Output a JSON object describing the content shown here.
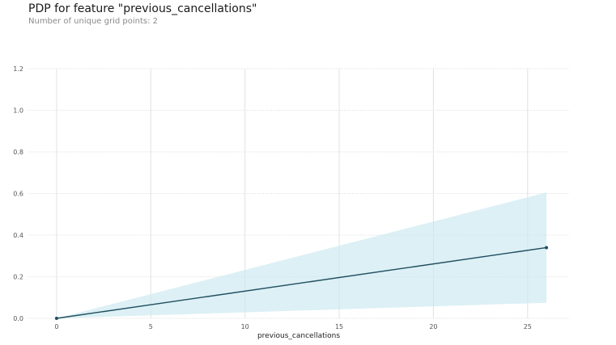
{
  "chart_data": {
    "type": "line",
    "title": "PDP for feature \"previous_cancellations\"",
    "subtitle": "Number of unique grid points: 2",
    "xlabel": "previous_cancellations",
    "ylabel": "",
    "xlim": [
      -1.5,
      27.2
    ],
    "ylim": [
      0,
      1.2
    ],
    "x_ticks": [
      0,
      5,
      10,
      15,
      20,
      25
    ],
    "y_ticks": [
      0.0,
      0.2,
      0.4,
      0.6,
      0.8,
      1.0,
      1.2
    ],
    "x_tick_labels": [
      "0",
      "5",
      "10",
      "15",
      "20",
      "25"
    ],
    "y_tick_labels": [
      "0.0",
      "0.2",
      "0.4",
      "0.6",
      "0.8",
      "1.0",
      "1.2"
    ],
    "grid": true,
    "series": [
      {
        "x": [
          0,
          26
        ],
        "y": [
          0.0,
          0.34
        ],
        "lower": [
          0.0,
          0.075
        ],
        "upper": [
          0.0,
          0.605
        ],
        "line_color": "#1f4e5f",
        "band_color": "#c9e8ef"
      }
    ]
  }
}
